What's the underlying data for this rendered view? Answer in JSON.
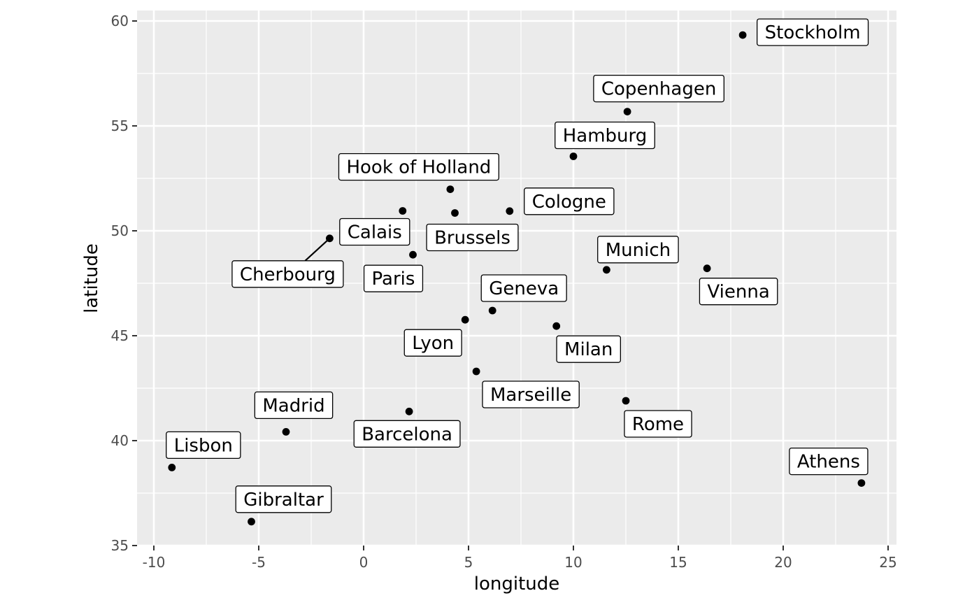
{
  "chart_data": {
    "type": "scatter",
    "title": "",
    "xlabel": "longitude",
    "ylabel": "latitude",
    "xlim": [
      -10.8,
      25.4
    ],
    "ylim": [
      35,
      60.5
    ],
    "x_ticks": [
      -10,
      -5,
      0,
      5,
      10,
      15,
      20,
      25
    ],
    "x_tick_labels": [
      "-10",
      "-5",
      "0",
      "5",
      "10",
      "15",
      "20",
      "25"
    ],
    "y_ticks": [
      35,
      40,
      45,
      50,
      55,
      60
    ],
    "y_tick_labels": [
      "35",
      "40",
      "45",
      "50",
      "55",
      "60"
    ],
    "grid": true,
    "legend": "none",
    "panel_background": "#ebebeb",
    "grid_color": "#ffffff",
    "point_color": "#000000",
    "points": [
      {
        "name": "Stockholm",
        "x": 18.07,
        "y": 59.33
      },
      {
        "name": "Copenhagen",
        "x": 12.57,
        "y": 55.68
      },
      {
        "name": "Hamburg",
        "x": 10.0,
        "y": 53.55
      },
      {
        "name": "Hook of Holland",
        "x": 4.13,
        "y": 51.98
      },
      {
        "name": "Cologne",
        "x": 6.96,
        "y": 50.94
      },
      {
        "name": "Brussels",
        "x": 4.35,
        "y": 50.85
      },
      {
        "name": "Calais",
        "x": 1.86,
        "y": 50.95
      },
      {
        "name": "Cherbourg",
        "x": -1.62,
        "y": 49.64
      },
      {
        "name": "Paris",
        "x": 2.35,
        "y": 48.86
      },
      {
        "name": "Munich",
        "x": 11.58,
        "y": 48.14
      },
      {
        "name": "Vienna",
        "x": 16.37,
        "y": 48.21
      },
      {
        "name": "Geneva",
        "x": 6.14,
        "y": 46.2
      },
      {
        "name": "Lyon",
        "x": 4.84,
        "y": 45.76
      },
      {
        "name": "Milan",
        "x": 9.19,
        "y": 45.46
      },
      {
        "name": "Marseille",
        "x": 5.37,
        "y": 43.3
      },
      {
        "name": "Barcelona",
        "x": 2.17,
        "y": 41.39
      },
      {
        "name": "Rome",
        "x": 12.5,
        "y": 41.9
      },
      {
        "name": "Madrid",
        "x": -3.7,
        "y": 40.42
      },
      {
        "name": "Lisbon",
        "x": -9.14,
        "y": 38.72
      },
      {
        "name": "Gibraltar",
        "x": -5.35,
        "y": 36.14
      },
      {
        "name": "Athens",
        "x": 23.73,
        "y": 37.98
      }
    ]
  }
}
